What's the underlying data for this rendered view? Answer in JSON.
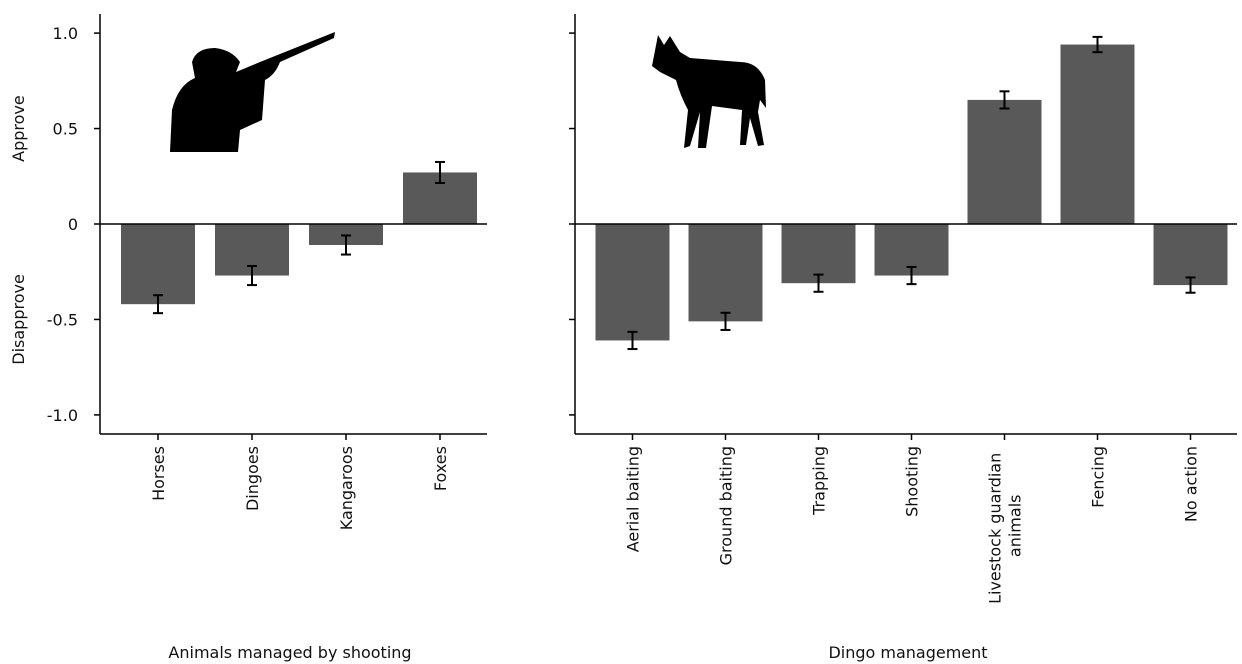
{
  "chart_data": [
    {
      "type": "bar",
      "y_annotations": [
        "Approve",
        "Disapprove"
      ],
      "xlabel": "Animals managed by shooting",
      "categories": [
        "Horses",
        "Dingoes",
        "Kangaroos",
        "Foxes"
      ],
      "series": [
        {
          "color": "#595959",
          "values": [
            -0.42,
            -0.27,
            -0.11,
            0.27
          ],
          "errors": [
            0.047,
            0.05,
            0.05,
            0.055
          ]
        }
      ],
      "ylim": [
        -1.1,
        1.1
      ],
      "yticks": [
        {
          "value": 1,
          "label": "1.0"
        },
        0.5,
        0,
        -0.5,
        {
          "value": -1,
          "label": "-1.0"
        }
      ]
    },
    {
      "type": "bar",
      "xlabel": "Dingo management",
      "categories": [
        "Aerial baiting",
        "Ground baiting",
        "Trapping",
        "Shooting",
        "Livestock guardian animals",
        "Fencing",
        "No action"
      ],
      "series": [
        {
          "color": "#595959",
          "values": [
            -0.61,
            -0.51,
            -0.31,
            -0.27,
            0.65,
            0.94,
            -0.32
          ],
          "errors": [
            0.045,
            0.045,
            0.045,
            0.045,
            0.045,
            0.04,
            0.04
          ]
        }
      ],
      "ylim": [
        -1.1,
        1.1
      ],
      "yticks": [
        1,
        0.5,
        0,
        -0.5,
        -1
      ]
    }
  ]
}
